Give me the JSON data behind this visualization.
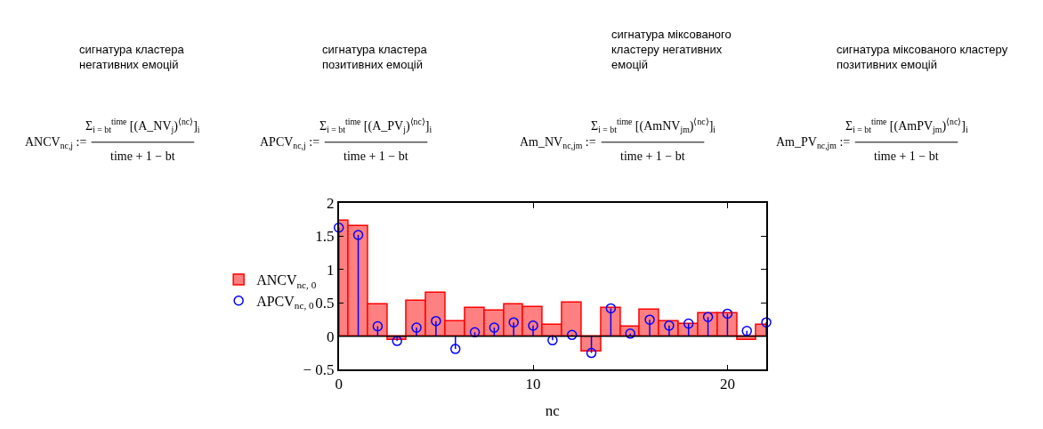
{
  "chart_data": {
    "type": "bar",
    "xlabel": "nc",
    "x": [
      0,
      1,
      2,
      3,
      4,
      5,
      6,
      7,
      8,
      9,
      10,
      11,
      12,
      13,
      14,
      15,
      16,
      17,
      18,
      19,
      20,
      21,
      22
    ],
    "series": [
      {
        "name": "ANCV$_{nc, 0}$",
        "type": "bar",
        "color": "#ff8080",
        "values": [
          1.73,
          1.65,
          0.48,
          -0.05,
          0.53,
          0.65,
          0.23,
          0.42,
          0.38,
          0.48,
          0.44,
          0.17,
          0.5,
          -0.23,
          0.42,
          0.15,
          0.4,
          0.23,
          0.19,
          0.34,
          0.34,
          -0.05,
          0.17
        ]
      },
      {
        "name": "APCV$_{nc, 0}$",
        "type": "lollipop",
        "color": "#0000ff",
        "marker": "circle",
        "values": [
          1.63,
          1.52,
          0.15,
          -0.07,
          0.13,
          0.23,
          -0.19,
          0.06,
          0.13,
          0.21,
          0.16,
          -0.06,
          0.02,
          -0.25,
          0.42,
          0.04,
          0.25,
          0.16,
          0.19,
          0.29,
          0.34,
          0.08,
          0.21
        ]
      }
    ],
    "xlim": [
      0,
      22
    ],
    "xticks": [
      0,
      10,
      20
    ],
    "ylim": [
      -0.5,
      2
    ],
    "yticks": [
      -0.5,
      0,
      0.5,
      1,
      1.5,
      2
    ],
    "ref_lines": [
      {
        "axis": "y",
        "value": 0,
        "color": "#000000"
      }
    ],
    "legend": "left",
    "annotations": [
      "сигнатура кластера\nнегативних емоцій",
      "сигнатура кластера\nпозитивних емоцій",
      "сигнатура міксованого\nкластеру негативних\nемоцій",
      "сигнатура міксованого кластеру\nпозитивних емоцій",
      "ANCV$_{nc,j}$ :=",
      "APCV$_{nc,j}$ :=",
      "Am_NV$_{nc,jm}$ :=",
      "Am_PV$_{nc,jm}$ :=",
      "Σ$_{i = bt}$$^{time}$ [(A_NV$_{j}$)$^{⟨nc⟩}$]$_{i}$",
      "Σ$_{i = bt}$$^{time}$ [(A_PV$_{j}$)$^{⟨nc⟩}$]$_{i}$",
      "Σ$_{i = bt}$$^{time}$ [(AmNV$_{jm}$)$^{⟨nc⟩}$]$_{i}$",
      "Σ$_{i = bt}$$^{time}$ [(AmPV$_{jm}$)$^{⟨nc⟩}$]$_{i}$",
      "time + 1 − bt",
      "time + 1 − bt",
      "time + 1 − bt",
      "time + 1 − bt"
    ]
  }
}
